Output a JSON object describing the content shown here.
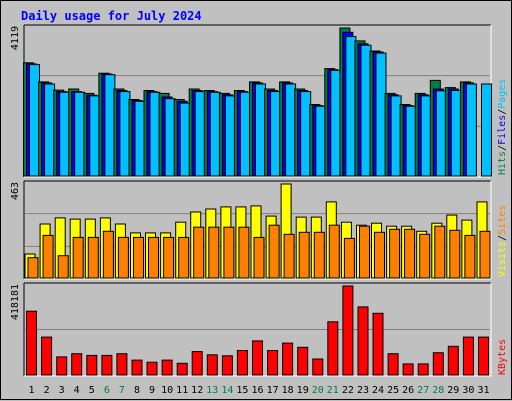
{
  "title": "Daily usage for July 2024",
  "chart_data": [
    {
      "type": "bar",
      "id": "hits-files-pages",
      "max_label": "4119",
      "ylim": [
        0,
        4119
      ],
      "categories": [
        "1",
        "2",
        "3",
        "4",
        "5",
        "6",
        "7",
        "8",
        "9",
        "10",
        "11",
        "12",
        "13",
        "14",
        "15",
        "16",
        "17",
        "18",
        "19",
        "20",
        "21",
        "22",
        "23",
        "24",
        "25",
        "26",
        "27",
        "28",
        "29",
        "30",
        "31"
      ],
      "weekend_days": [
        "6",
        "7",
        "13",
        "14",
        "20",
        "21",
        "27",
        "28"
      ],
      "series": [
        {
          "name": "Hits",
          "color": "#008040",
          "values": [
            3150,
            2620,
            2390,
            2420,
            2300,
            2860,
            2420,
            2130,
            2380,
            2300,
            2130,
            2420,
            2380,
            2300,
            2380,
            2620,
            2420,
            2620,
            2420,
            1990,
            2990,
            4119,
            3760,
            3480,
            2300,
            1990,
            2300,
            2660,
            2460,
            2620,
            0
          ]
        },
        {
          "name": "Files",
          "color": "#0000ff",
          "values": [
            3120,
            2590,
            2350,
            2350,
            2250,
            2840,
            2380,
            2100,
            2350,
            2200,
            2080,
            2380,
            2350,
            2260,
            2350,
            2590,
            2380,
            2590,
            2380,
            1960,
            2960,
            4000,
            3680,
            3450,
            2260,
            1960,
            2260,
            2420,
            2420,
            2590,
            0
          ]
        },
        {
          "name": "Pages",
          "color": "#00c0ff",
          "values": [
            3100,
            2560,
            2330,
            2330,
            2230,
            2820,
            2350,
            2080,
            2330,
            2150,
            2030,
            2350,
            2330,
            2230,
            2330,
            2560,
            2350,
            2560,
            2350,
            1940,
            2940,
            3880,
            3640,
            3420,
            2230,
            1940,
            2230,
            2370,
            2380,
            2560,
            2560
          ]
        }
      ]
    },
    {
      "type": "bar",
      "id": "visits-sites",
      "max_label": "463",
      "ylim": [
        0,
        463
      ],
      "series": [
        {
          "name": "Visits",
          "color": "#ffff00",
          "values": [
            118,
            266,
            296,
            290,
            290,
            296,
            266,
            222,
            222,
            222,
            275,
            325,
            340,
            350,
            350,
            355,
            305,
            463,
            300,
            300,
            375,
            275,
            260,
            270,
            255,
            255,
            230,
            270,
            310,
            285,
            375
          ]
        },
        {
          "name": "Sites",
          "color": "#ff8000",
          "values": [
            100,
            210,
            110,
            200,
            200,
            230,
            200,
            200,
            200,
            200,
            200,
            250,
            250,
            250,
            250,
            200,
            260,
            215,
            225,
            225,
            260,
            195,
            255,
            225,
            240,
            240,
            215,
            255,
            235,
            210,
            230
          ]
        }
      ]
    },
    {
      "type": "bar",
      "id": "kbytes",
      "max_label": "418181",
      "ylim": [
        0,
        418181
      ],
      "series": [
        {
          "name": "KBytes",
          "color": "#ff0000",
          "values": [
            300000,
            178000,
            85000,
            100000,
            92000,
            92000,
            100000,
            70000,
            60000,
            70000,
            55000,
            110000,
            95000,
            90000,
            115000,
            160000,
            115000,
            150000,
            130000,
            75000,
            250000,
            418181,
            320000,
            290000,
            100000,
            52000,
            52000,
            105000,
            135000,
            178000,
            178000
          ]
        }
      ]
    }
  ],
  "legend": {
    "top": [
      {
        "text": "Hits",
        "color": "#008040"
      },
      {
        "text": "/",
        "color": "#000000"
      },
      {
        "text": "Files",
        "color": "#0000ff"
      },
      {
        "text": "/",
        "color": "#000000"
      },
      {
        "text": "Pages",
        "color": "#00c0ff"
      }
    ],
    "middle": [
      {
        "text": "Visits",
        "color": "#ffff00"
      },
      {
        "text": "/",
        "color": "#000000"
      },
      {
        "text": "Sites",
        "color": "#ff8000"
      }
    ],
    "bottom": [
      {
        "text": "KBytes",
        "color": "#ff0000"
      }
    ]
  },
  "colors": {
    "background": "#c0c0c0",
    "grid": "#808080",
    "title": "#0000ff",
    "weekday_label": "#000000",
    "weekend_label": "#008040"
  }
}
